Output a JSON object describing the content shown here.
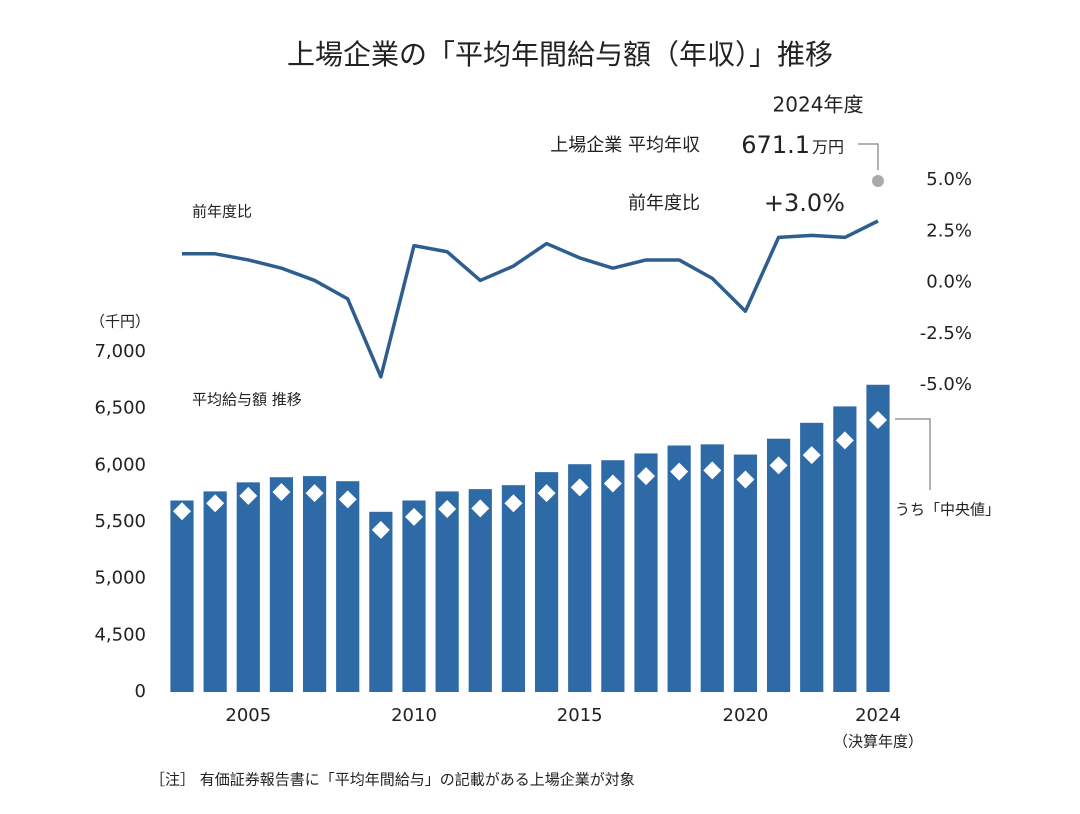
{
  "chart_data": {
    "type": "bar_line",
    "title": "上場企業の「平均年間給与額（年収）」推移",
    "x": [
      2003,
      2004,
      2005,
      2006,
      2007,
      2008,
      2009,
      2010,
      2011,
      2012,
      2013,
      2014,
      2015,
      2016,
      2017,
      2018,
      2019,
      2020,
      2021,
      2022,
      2023,
      2024
    ],
    "xticks": [
      2005,
      2010,
      2015,
      2020,
      2024
    ],
    "x_axis_label": "（決算年度）",
    "y_axis_label": "（千円）",
    "ylim": [
      0,
      7000
    ],
    "y_break": [
      0,
      4500
    ],
    "yticks": [
      0,
      {
        "value": 4500,
        "label": "4,500"
      },
      {
        "value": 5000,
        "label": "5,000"
      },
      {
        "value": 5500,
        "label": "5,500"
      },
      {
        "value": 6000,
        "label": "6,000"
      },
      {
        "value": 6500,
        "label": "6,500"
      },
      {
        "value": 7000,
        "label": "7,000"
      }
    ],
    "y2lim": [
      -5,
      5
    ],
    "y2ticks": [
      {
        "value": 5,
        "label": "5.0%"
      },
      {
        "value": 2.5,
        "label": "2.5%"
      },
      {
        "value": 0,
        "label": "0.0%"
      },
      {
        "value": -2.5,
        "label": "-2.5%"
      },
      {
        "value": -5,
        "label": "-5.0%"
      }
    ],
    "series": [
      {
        "name": "平均給与額 推移",
        "kind": "bar",
        "color": "#2e6aa6",
        "values": [
          5690,
          5770,
          5850,
          5895,
          5905,
          5860,
          5590,
          5690,
          5770,
          5790,
          5825,
          5940,
          6010,
          6045,
          6105,
          6175,
          6185,
          6095,
          6235,
          6375,
          6520,
          6711
        ]
      },
      {
        "name": "うち「中央値」",
        "kind": "diamond",
        "color": "#ffffff",
        "values": [
          5595,
          5665,
          5730,
          5765,
          5755,
          5700,
          5430,
          5545,
          5615,
          5620,
          5665,
          5755,
          5805,
          5840,
          5905,
          5945,
          5955,
          5875,
          6000,
          6090,
          6220,
          6400
        ]
      },
      {
        "name": "前年度比",
        "kind": "line",
        "axis": "y2",
        "color": "#2d5e8e",
        "values": [
          1.4,
          1.4,
          1.1,
          0.7,
          0.1,
          -0.8,
          -4.6,
          1.8,
          1.5,
          0.1,
          0.8,
          1.9,
          1.2,
          0.7,
          1.1,
          1.1,
          0.2,
          -1.4,
          2.2,
          2.3,
          2.2,
          3.0
        ]
      }
    ],
    "annotations": {
      "year": "2024年度",
      "avg_label": "上場企業 平均年収",
      "avg_value": "671.1",
      "avg_unit": "万円",
      "yoy_label": "前年度比",
      "yoy_value": "+3.0%"
    },
    "note": "［注］ 有価証券報告書に「平均年間給与」の記載がある上場企業が対象"
  }
}
